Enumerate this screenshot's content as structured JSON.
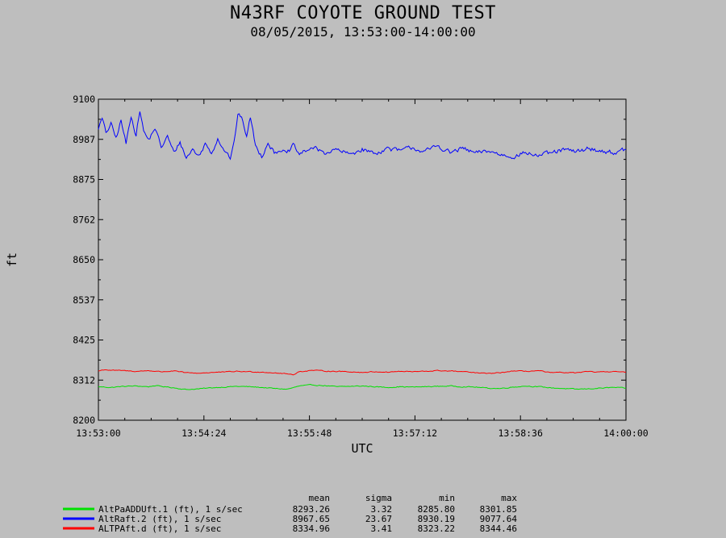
{
  "chart_data": {
    "type": "line",
    "title": "N43RF COYOTE GROUND TEST",
    "subtitle": "08/05/2015, 13:53:00-14:00:00",
    "xlabel": "UTC",
    "ylabel": "ft",
    "xlim": [
      "13:53:00",
      "14:00:00"
    ],
    "ylim": [
      8200,
      9100
    ],
    "x_ticks": [
      "13:53:00",
      "13:54:24",
      "13:55:48",
      "13:57:12",
      "13:58:36",
      "14:00:00"
    ],
    "y_ticks": [
      "9100",
      "8987",
      "8875",
      "8762",
      "8650",
      "8537",
      "8425",
      "8312",
      "8200"
    ],
    "grid": false,
    "legend_placement": "bottom-left",
    "stat_headers": [
      "mean",
      "sigma",
      "min",
      "max"
    ],
    "series": [
      {
        "name": "AltPaADDUft.1 (ft), 1 s/sec",
        "color": "#00e000",
        "stats": [
          "8293.26",
          "3.32",
          "8285.80",
          "8301.85"
        ],
        "sample_rate_s": 1,
        "anchors": [
          [
            0,
            8294
          ],
          [
            5,
            8293
          ],
          [
            10,
            8292
          ],
          [
            20,
            8295
          ],
          [
            30,
            8296
          ],
          [
            40,
            8294
          ],
          [
            45,
            8297
          ],
          [
            50,
            8295
          ],
          [
            60,
            8291
          ],
          [
            70,
            8286
          ],
          [
            80,
            8288
          ],
          [
            90,
            8291
          ],
          [
            100,
            8293
          ],
          [
            110,
            8295
          ],
          [
            120,
            8294
          ],
          [
            130,
            8292
          ],
          [
            140,
            8289
          ],
          [
            150,
            8287
          ],
          [
            155,
            8291
          ],
          [
            160,
            8296
          ],
          [
            170,
            8299
          ],
          [
            180,
            8297
          ],
          [
            190,
            8294
          ],
          [
            200,
            8295
          ],
          [
            210,
            8296
          ],
          [
            220,
            8294
          ],
          [
            230,
            8292
          ],
          [
            240,
            8294
          ],
          [
            250,
            8293
          ],
          [
            260,
            8294
          ],
          [
            270,
            8295
          ],
          [
            280,
            8296
          ],
          [
            290,
            8294
          ],
          [
            300,
            8293
          ],
          [
            310,
            8290
          ],
          [
            320,
            8289
          ],
          [
            330,
            8293
          ],
          [
            340,
            8296
          ],
          [
            350,
            8294
          ],
          [
            360,
            8291
          ],
          [
            370,
            8289
          ],
          [
            380,
            8287
          ],
          [
            390,
            8288
          ],
          [
            400,
            8290
          ],
          [
            410,
            8292
          ],
          [
            420,
            8290
          ]
        ]
      },
      {
        "name": "AltRaft.2 (ft), 1 s/sec",
        "color": "#0000ff",
        "stats": [
          "8967.65",
          "23.67",
          "8930.19",
          "9077.64"
        ],
        "sample_rate_s": 1,
        "anchors": [
          [
            0,
            9020
          ],
          [
            3,
            9045
          ],
          [
            6,
            9005
          ],
          [
            10,
            9030
          ],
          [
            14,
            8990
          ],
          [
            18,
            9040
          ],
          [
            22,
            8975
          ],
          [
            26,
            9055
          ],
          [
            30,
            9000
          ],
          [
            33,
            9070
          ],
          [
            36,
            9010
          ],
          [
            40,
            8985
          ],
          [
            45,
            9020
          ],
          [
            50,
            8965
          ],
          [
            55,
            8995
          ],
          [
            60,
            8950
          ],
          [
            65,
            8980
          ],
          [
            70,
            8935
          ],
          [
            75,
            8960
          ],
          [
            80,
            8940
          ],
          [
            85,
            8975
          ],
          [
            90,
            8950
          ],
          [
            95,
            8990
          ],
          [
            100,
            8960
          ],
          [
            105,
            8935
          ],
          [
            108,
            8975
          ],
          [
            111,
            9060
          ],
          [
            115,
            9040
          ],
          [
            118,
            8995
          ],
          [
            121,
            9050
          ],
          [
            125,
            8970
          ],
          [
            130,
            8940
          ],
          [
            135,
            8980
          ],
          [
            140,
            8950
          ],
          [
            145,
            8960
          ],
          [
            150,
            8945
          ],
          [
            155,
            8970
          ],
          [
            160,
            8945
          ],
          [
            170,
            8965
          ],
          [
            180,
            8950
          ],
          [
            190,
            8958
          ],
          [
            200,
            8945
          ],
          [
            210,
            8960
          ],
          [
            220,
            8948
          ],
          [
            230,
            8962
          ],
          [
            240,
            8955
          ],
          [
            250,
            8965
          ],
          [
            260,
            8952
          ],
          [
            270,
            8970
          ],
          [
            280,
            8950
          ],
          [
            290,
            8962
          ],
          [
            300,
            8948
          ],
          [
            310,
            8955
          ],
          [
            320,
            8945
          ],
          [
            330,
            8940
          ],
          [
            340,
            8950
          ],
          [
            350,
            8942
          ],
          [
            360,
            8948
          ],
          [
            370,
            8958
          ],
          [
            380,
            8952
          ],
          [
            390,
            8962
          ],
          [
            400,
            8955
          ],
          [
            410,
            8950
          ],
          [
            420,
            8958
          ]
        ]
      },
      {
        "name": "ALTPAft.d (ft), 1 s/sec",
        "color": "#ff0000",
        "stats": [
          "8334.96",
          "3.41",
          "8323.22",
          "8344.46"
        ],
        "sample_rate_s": 1,
        "anchors": [
          [
            0,
            8338
          ],
          [
            5,
            8342
          ],
          [
            10,
            8340
          ],
          [
            20,
            8339
          ],
          [
            30,
            8337
          ],
          [
            40,
            8339
          ],
          [
            50,
            8336
          ],
          [
            60,
            8338
          ],
          [
            70,
            8333
          ],
          [
            80,
            8332
          ],
          [
            90,
            8334
          ],
          [
            100,
            8335
          ],
          [
            110,
            8337
          ],
          [
            120,
            8336
          ],
          [
            130,
            8335
          ],
          [
            140,
            8333
          ],
          [
            150,
            8330
          ],
          [
            155,
            8328
          ],
          [
            160,
            8336
          ],
          [
            170,
            8340
          ],
          [
            180,
            8338
          ],
          [
            190,
            8337
          ],
          [
            200,
            8336
          ],
          [
            210,
            8334
          ],
          [
            220,
            8336
          ],
          [
            230,
            8335
          ],
          [
            240,
            8337
          ],
          [
            250,
            8336
          ],
          [
            260,
            8337
          ],
          [
            270,
            8339
          ],
          [
            280,
            8338
          ],
          [
            290,
            8336
          ],
          [
            300,
            8333
          ],
          [
            310,
            8331
          ],
          [
            320,
            8333
          ],
          [
            330,
            8338
          ],
          [
            340,
            8337
          ],
          [
            350,
            8339
          ],
          [
            360,
            8333
          ],
          [
            370,
            8334
          ],
          [
            380,
            8333
          ],
          [
            390,
            8336
          ],
          [
            400,
            8335
          ],
          [
            410,
            8337
          ],
          [
            420,
            8334
          ]
        ]
      }
    ]
  }
}
